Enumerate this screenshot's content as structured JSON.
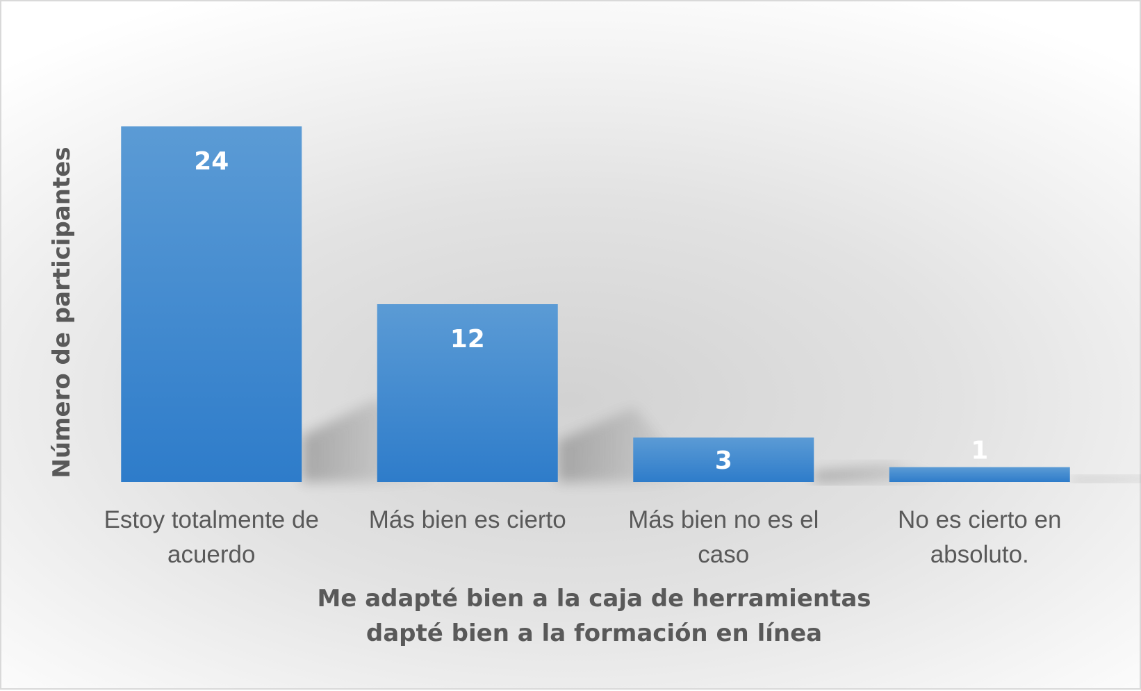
{
  "chart_data": {
    "type": "bar",
    "categories": [
      [
        "Estoy totalmente de",
        "acuerdo"
      ],
      [
        "Más bien es cierto"
      ],
      [
        "Más bien no es el",
        "caso"
      ],
      [
        "No es cierto en",
        "absoluto."
      ]
    ],
    "values": [
      24,
      12,
      3,
      1
    ],
    "ylabel": "Número de participantes",
    "xlabel": [
      "Me adapté bien a la caja de herramientas",
      "dapté bien a la formación en línea"
    ],
    "ylim": [
      0,
      24
    ],
    "grid": false,
    "legend": "none",
    "data_labels": "inside-end",
    "colors": {
      "bar_top": "#5b9bd5",
      "bar_bottom": "#2e7cca",
      "label_text": "#595959",
      "value_text": "#ffffff",
      "border": "#d9d9d9"
    }
  }
}
